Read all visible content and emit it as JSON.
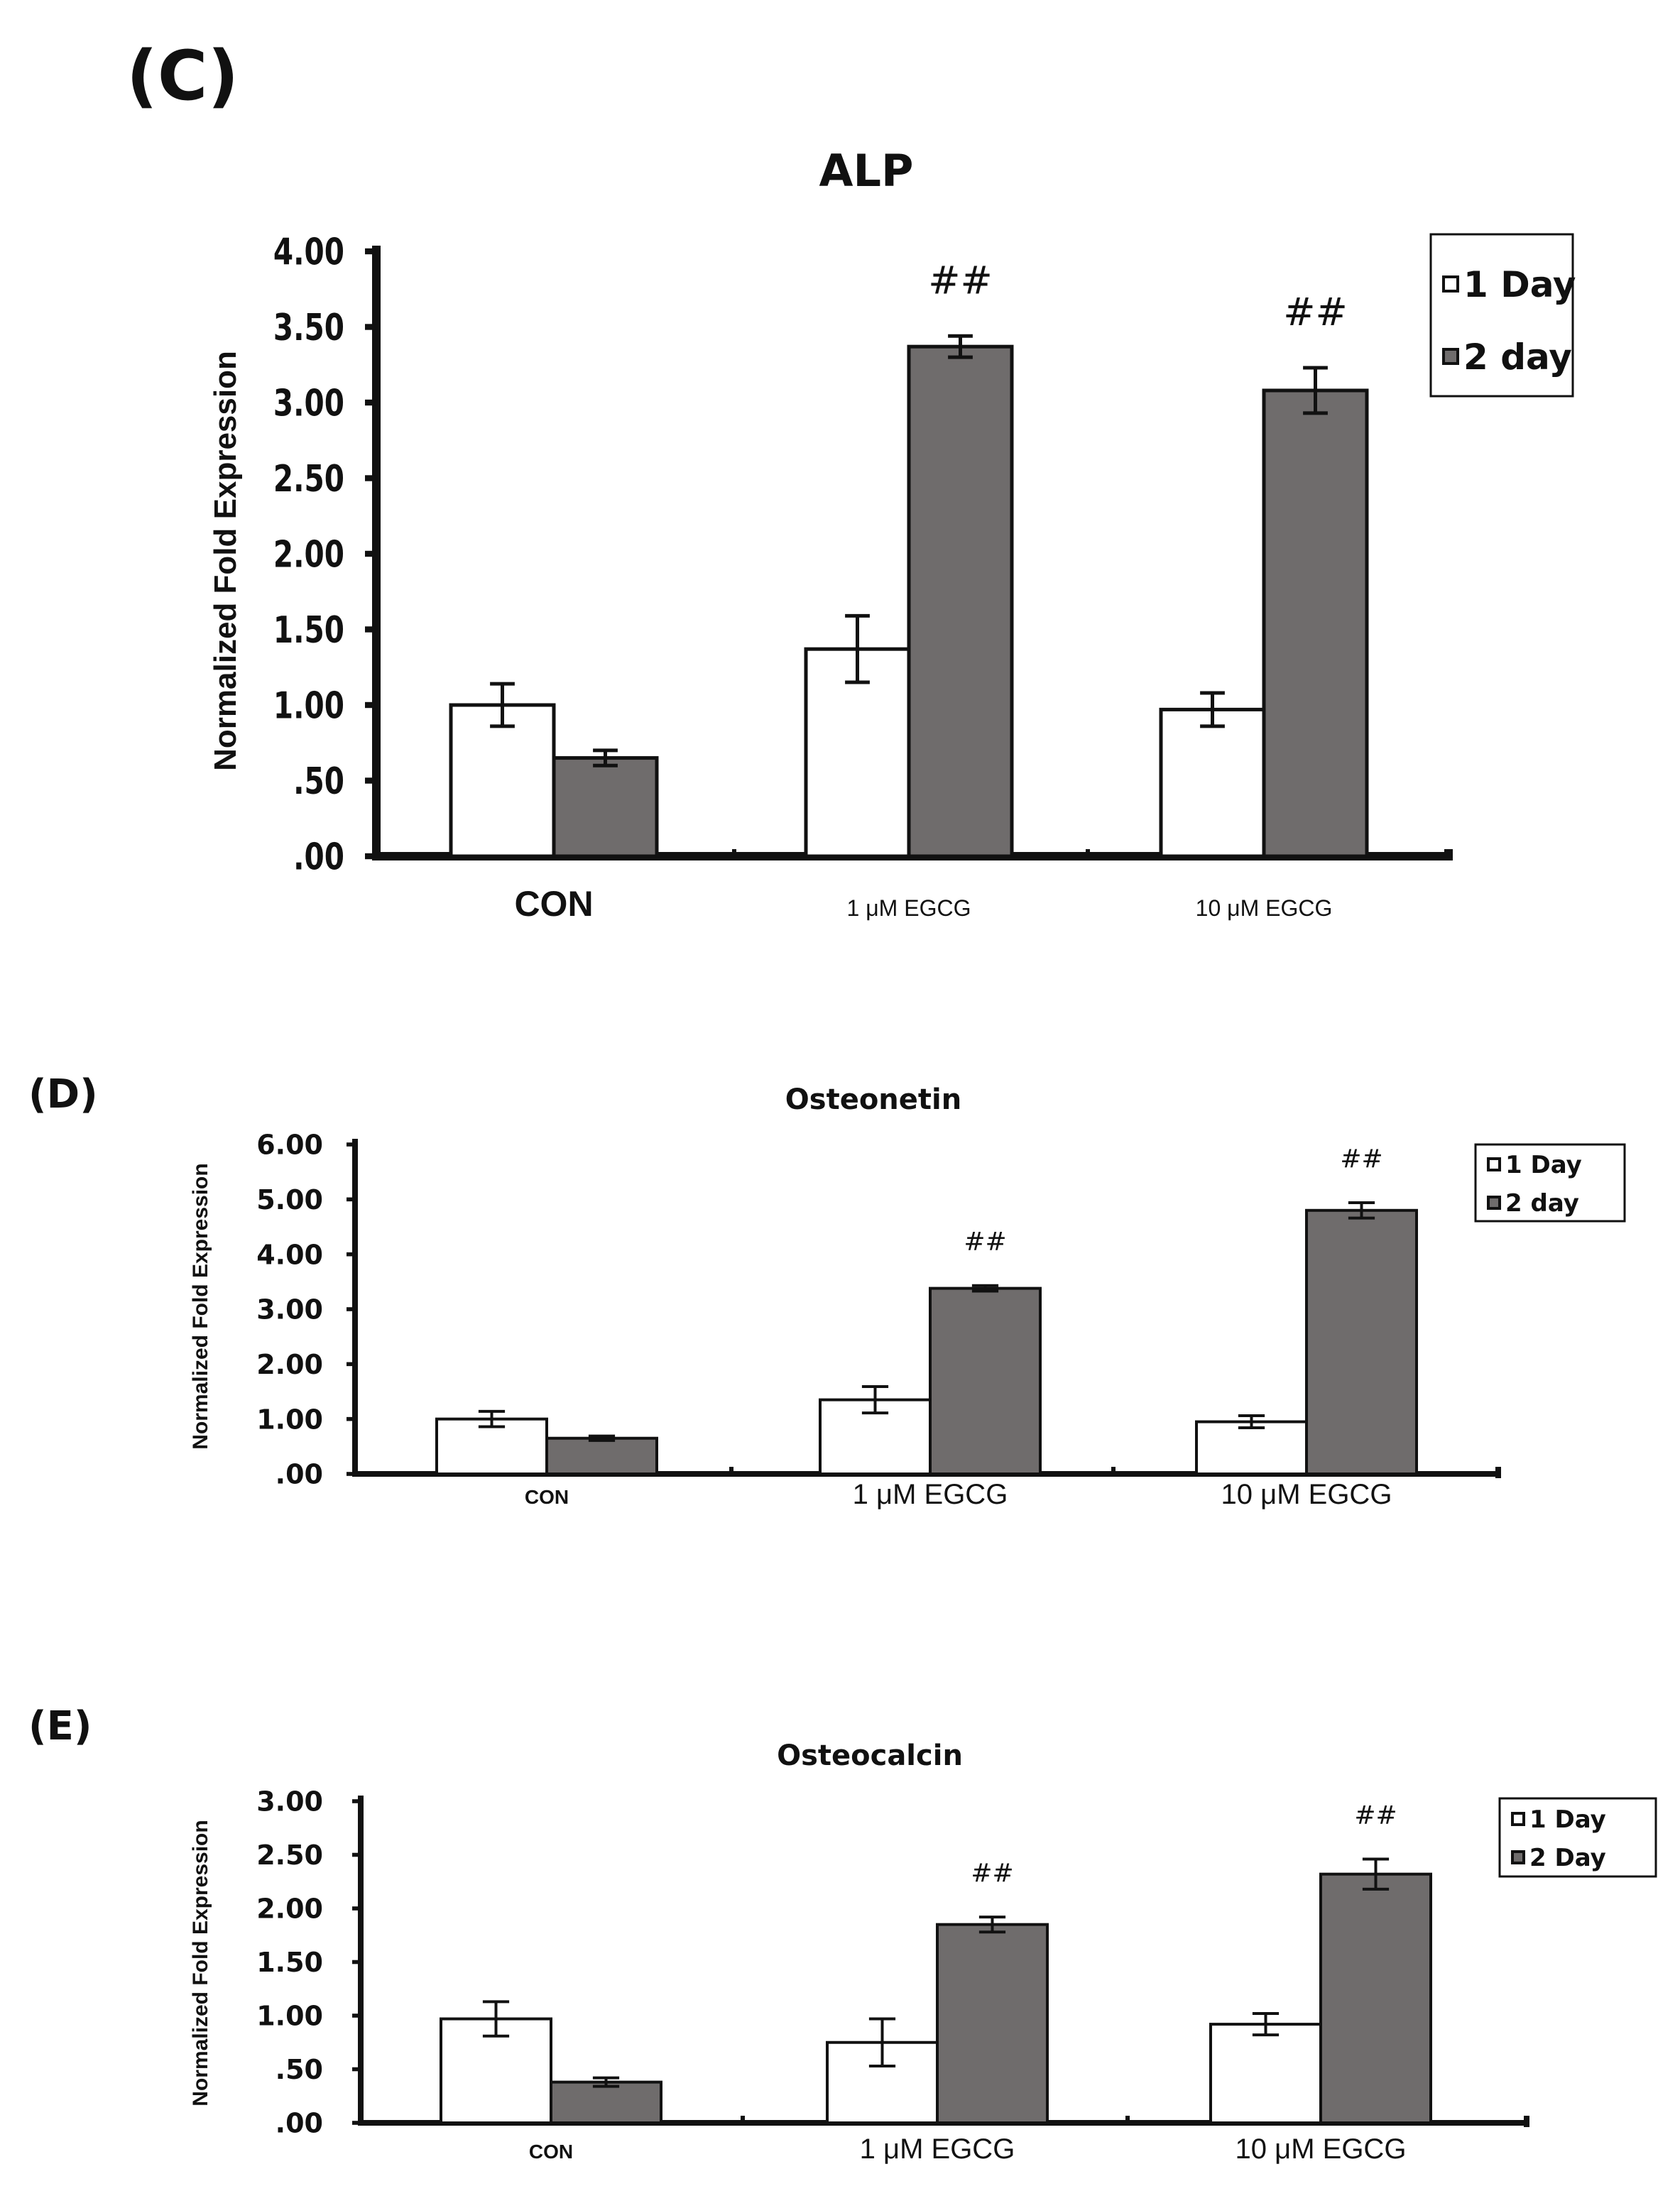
{
  "colors": {
    "day1": "#ffffff",
    "day2": "#6f6c6c",
    "ink": "#111111"
  },
  "chart_data": [
    {
      "type": "bar",
      "panel": "(C)",
      "title": "ALP",
      "ylabel": "Normalized Fold Expression",
      "xlabel": "",
      "ylim": [
        0,
        4
      ],
      "yticks": [
        ".00",
        ".50",
        "1.00",
        "1.50",
        "2.00",
        "2.50",
        "3.00",
        "3.50",
        "4.00"
      ],
      "categories": [
        "CON",
        "1 μM EGCG",
        "10 μM EGCG"
      ],
      "series": [
        {
          "name": "1 Day",
          "values": [
            1.0,
            1.37,
            0.97
          ],
          "errors": [
            0.14,
            0.22,
            0.11
          ]
        },
        {
          "name": "2 day",
          "values": [
            0.65,
            3.37,
            3.08
          ],
          "errors": [
            0.05,
            0.07,
            0.15
          ]
        }
      ],
      "significance": [
        "",
        "##",
        "##"
      ],
      "legend": [
        "1 Day",
        "2 day"
      ],
      "legend_position": "top-right"
    },
    {
      "type": "bar",
      "panel": "(D)",
      "title": "Osteonetin",
      "ylabel": "Normalized Fold Expression",
      "xlabel": "",
      "ylim": [
        0,
        6
      ],
      "yticks": [
        ".00",
        "1.00",
        "2.00",
        "3.00",
        "4.00",
        "5.00",
        "6.00"
      ],
      "categories": [
        "CON",
        "1 μM EGCG",
        "10 μM EGCG"
      ],
      "series": [
        {
          "name": "1 Day",
          "values": [
            1.0,
            1.35,
            0.95
          ],
          "errors": [
            0.14,
            0.24,
            0.11
          ]
        },
        {
          "name": "2 day",
          "values": [
            0.65,
            3.38,
            4.8
          ],
          "errors": [
            0.04,
            0.05,
            0.14
          ]
        }
      ],
      "significance": [
        "",
        "##",
        "##"
      ],
      "legend": [
        "1 Day",
        "2 day"
      ],
      "legend_position": "top-right"
    },
    {
      "type": "bar",
      "panel": "(E)",
      "title": "Osteocalcin",
      "ylabel": "Normalized Fold Expression",
      "xlabel": "",
      "ylim": [
        0,
        3
      ],
      "yticks": [
        ".00",
        ".50",
        "1.00",
        "1.50",
        "2.00",
        "2.50",
        "3.00"
      ],
      "categories": [
        "CON",
        "1 μM EGCG",
        "10 μM EGCG"
      ],
      "series": [
        {
          "name": "1 Day",
          "values": [
            0.97,
            0.75,
            0.92
          ],
          "errors": [
            0.16,
            0.22,
            0.1
          ]
        },
        {
          "name": "2 Day",
          "values": [
            0.38,
            1.85,
            2.32
          ],
          "errors": [
            0.04,
            0.07,
            0.14
          ]
        }
      ],
      "significance": [
        "",
        "##",
        "##"
      ],
      "legend": [
        "1 Day",
        "2 Day"
      ],
      "legend_position": "top-right"
    }
  ]
}
